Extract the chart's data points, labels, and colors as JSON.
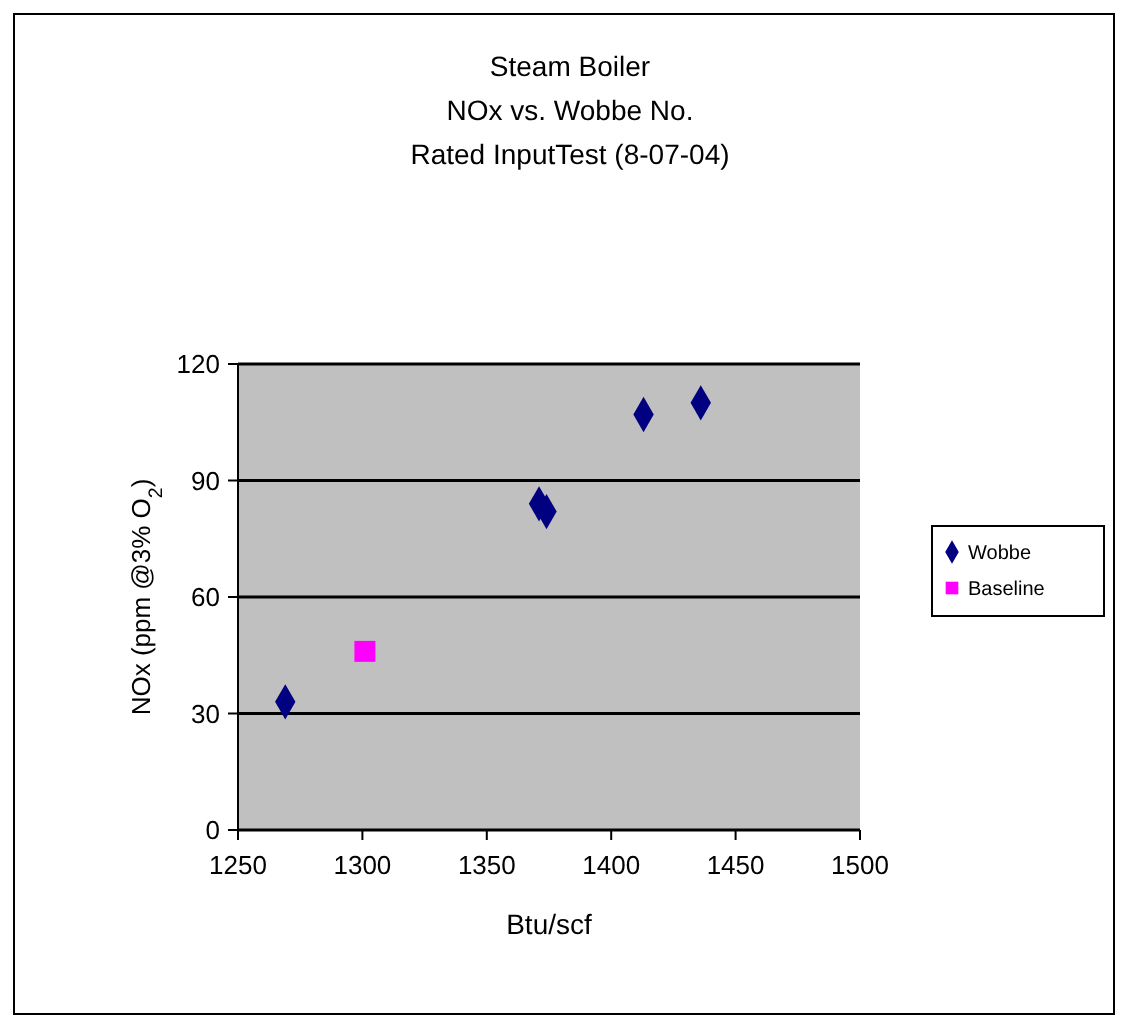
{
  "chart_data": {
    "type": "scatter",
    "title": "Steam Boiler\nNOx vs. Wobbe No.\nRated InputTest (8-07-04)",
    "xlabel": "Btu/scf",
    "ylabel": "NOx (ppm @3% O$_{2}$)",
    "xlim": [
      1250,
      1500
    ],
    "xticks": [
      1250,
      1300,
      1350,
      1400,
      1450,
      1500
    ],
    "ylim": [
      0,
      120
    ],
    "yticks": [
      0,
      30,
      60,
      90,
      120
    ],
    "grid": "y",
    "legend": "right",
    "series": [
      {
        "name": "Wobbe",
        "color": "#000080",
        "marker": "diamond",
        "x": [
          1269,
          1371,
          1374,
          1413,
          1436
        ],
        "values": [
          33,
          84,
          82,
          107,
          110
        ]
      },
      {
        "name": "Baseline",
        "color": "#ff00ff",
        "marker": "square",
        "x": [
          1301
        ],
        "values": [
          46
        ]
      }
    ]
  }
}
